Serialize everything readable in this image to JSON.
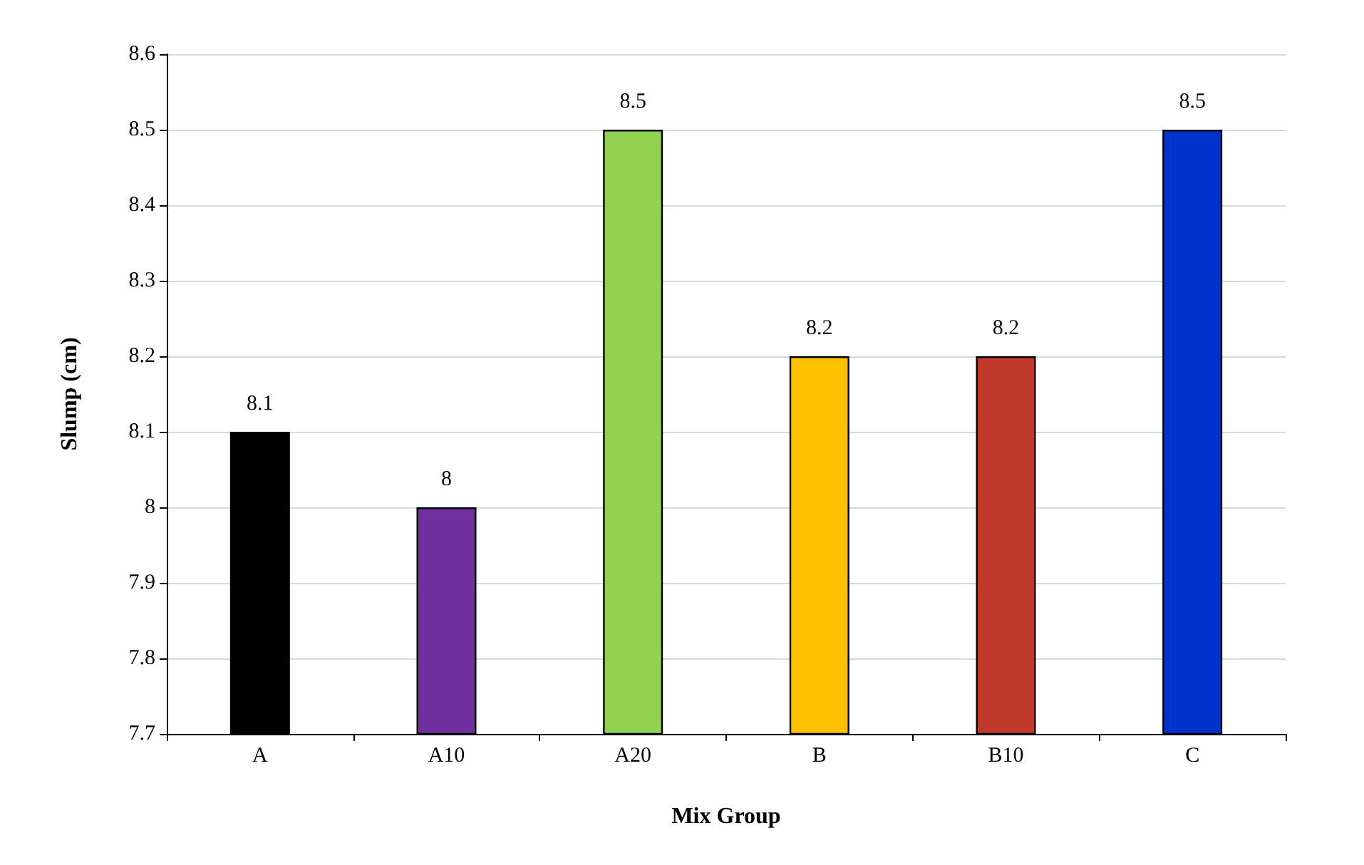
{
  "chart_data": {
    "type": "bar",
    "xlabel": "Mix Group",
    "ylabel": "Slump (cm)",
    "categories": [
      "A",
      "A10",
      "A20",
      "B",
      "B10",
      "C"
    ],
    "values": [
      8.1,
      8,
      8.5,
      8.2,
      8.2,
      8.5
    ],
    "colors": [
      "#000000",
      "#7030a0",
      "#92d050",
      "#ffc000",
      "#c0392b",
      "#0033cc"
    ],
    "ylim": [
      7.7,
      8.6
    ],
    "yticks": [
      7.7,
      7.8,
      7.9,
      8,
      8.1,
      8.2,
      8.3,
      8.4,
      8.5,
      8.6
    ],
    "grid": "y",
    "data_labels": true
  }
}
